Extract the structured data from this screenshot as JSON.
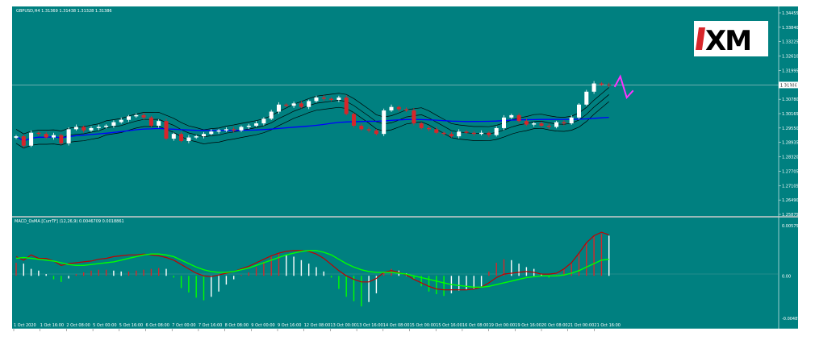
{
  "header": {
    "price_title": "GBPUSD,H4  1.31369 1.31438 1.31328 1.31386",
    "macd_title": "MACD_OsMA [CurrTF] (12,26,9) 0.0046709 0.0018861"
  },
  "logo": {
    "text": "XM",
    "accent_color": "#d7262a"
  },
  "colors": {
    "background": "#008080",
    "bull_candle": "#ffffff",
    "bear_candle": "#d7262a",
    "ma_line": "#0000ff",
    "bands": "#000000",
    "signal_line": "#00ff00",
    "macd_line": "#c00000",
    "arrow": "#ff33ff"
  },
  "current_price_label": "1.31386",
  "price_axis_labels": [
    "1.34455",
    "1.33840",
    "1.33225",
    "1.32610",
    "1.31995",
    "1.31380",
    "1.30780",
    "1.30165",
    "1.29550",
    "1.28935",
    "1.28320",
    "1.27705",
    "1.27105",
    "1.26490",
    "1.25875"
  ],
  "macd_axis_labels": [
    "0.00575",
    "0.00",
    "-0.00487"
  ],
  "time_labels": [
    "1 Oct 2020",
    "1 Oct 16:00",
    "2 Oct 08:00",
    "5 Oct 00:00",
    "5 Oct 16:00",
    "6 Oct 08:00",
    "7 Oct 00:00",
    "7 Oct 16:00",
    "8 Oct 08:00",
    "9 Oct 00:00",
    "9 Oct 16:00",
    "12 Oct 08:00",
    "13 Oct 00:00",
    "13 Oct 16:00",
    "14 Oct 08:00",
    "15 Oct 00:00",
    "15 Oct 16:00",
    "16 Oct 08:00",
    "19 Oct 00:00",
    "19 Oct 16:00",
    "20 Oct 08:00",
    "21 Oct 00:00",
    "21 Oct 16:00"
  ],
  "chart_data": {
    "type": "candlestick",
    "symbol": "GBPUSD",
    "timeframe": "H4",
    "ohlc": [
      1.31369,
      1.31438,
      1.31328,
      1.31386
    ],
    "close_series": [
      1.292,
      1.288,
      1.2935,
      1.293,
      1.2915,
      1.2925,
      1.289,
      1.295,
      1.296,
      1.2945,
      1.2955,
      1.296,
      1.2965,
      1.298,
      1.299,
      1.3005,
      1.301,
      1.3,
      1.2965,
      1.2985,
      1.291,
      1.293,
      1.29,
      1.2915,
      1.292,
      1.293,
      1.294,
      1.2945,
      1.295,
      1.2945,
      1.296,
      1.2965,
      1.2975,
      1.2995,
      1.3025,
      1.3055,
      1.305,
      1.306,
      1.3045,
      1.307,
      1.3085,
      1.308,
      1.3075,
      1.3085,
      1.3015,
      1.2965,
      1.295,
      1.2945,
      1.293,
      1.303,
      1.3045,
      1.3035,
      1.303,
      1.2975,
      1.2955,
      1.295,
      1.2935,
      1.293,
      1.292,
      1.294,
      1.2935,
      1.293,
      1.2935,
      1.2925,
      1.2955,
      1.3,
      1.301,
      1.2985,
      1.297,
      1.2975,
      1.2965,
      1.296,
      1.298,
      1.2975,
      1.3,
      1.3055,
      1.311,
      1.3145,
      1.314,
      1.3138
    ],
    "forecast_arrow": [
      1.313,
      1.3175,
      1.3085,
      1.3115
    ],
    "macd_histogram": [
      0.0015,
      0.0014,
      0.0008,
      0.0006,
      0.0002,
      -0.0004,
      -0.0007,
      -0.0003,
      0.0002,
      0.0004,
      0.0006,
      0.0007,
      0.0007,
      0.0006,
      0.0005,
      0.0005,
      0.0006,
      0.0007,
      0.0008,
      0.0009,
      0.0008,
      -0.0002,
      -0.0014,
      -0.0019,
      -0.0025,
      -0.0028,
      -0.0024,
      -0.0018,
      -0.001,
      -0.0004,
      0.0001,
      0.0004,
      0.001,
      0.0016,
      0.0022,
      0.0026,
      0.0024,
      0.0022,
      0.0018,
      0.0014,
      0.001,
      0.0005,
      -0.0002,
      -0.0015,
      -0.0024,
      -0.0029,
      -0.0035,
      -0.003,
      -0.002,
      0.0004,
      0.0008,
      0.0006,
      0.0003,
      -0.0004,
      -0.0012,
      -0.0018,
      -0.0021,
      -0.0023,
      -0.002,
      -0.0017,
      -0.0016,
      -0.0015,
      -0.0012,
      0.0005,
      0.0015,
      0.0019,
      0.0018,
      0.0014,
      0.001,
      0.0008,
      0.0002,
      -0.0002,
      0.0001,
      0.0008,
      0.0014,
      0.0025,
      0.0038,
      0.0045,
      0.0048,
      0.0046
    ],
    "macd_signal": [
      0.002,
      0.0021,
      0.002,
      0.0019,
      0.0018,
      0.0017,
      0.0015,
      0.0013,
      0.0012,
      0.0012,
      0.0013,
      0.0014,
      0.0015,
      0.0016,
      0.0018,
      0.002,
      0.0022,
      0.0024,
      0.0025,
      0.0025,
      0.0024,
      0.0022,
      0.0018,
      0.0014,
      0.001,
      0.0007,
      0.0005,
      0.0004,
      0.0004,
      0.0005,
      0.0007,
      0.0009,
      0.0012,
      0.0015,
      0.0018,
      0.0021,
      0.0024,
      0.0026,
      0.0028,
      0.0029,
      0.0029,
      0.0027,
      0.0024,
      0.0019,
      0.0014,
      0.001,
      0.0007,
      0.0005,
      0.0004,
      0.0004,
      0.0004,
      0.0003,
      0.0002,
      0.0,
      -0.0002,
      -0.0004,
      -0.0006,
      -0.0008,
      -0.001,
      -0.0011,
      -0.0012,
      -0.0013,
      -0.0013,
      -0.0012,
      -0.001,
      -0.0008,
      -0.0006,
      -0.0004,
      -0.0002,
      -0.0001,
      0.0,
      0.0,
      0.0,
      0.0001,
      0.0003,
      0.0006,
      0.001,
      0.0014,
      0.0018,
      0.0019
    ],
    "macd_line": [
      0.0022,
      0.0018,
      0.0024,
      0.002,
      0.002,
      0.0017,
      0.0012,
      0.0014,
      0.0015,
      0.0016,
      0.0017,
      0.0019,
      0.002,
      0.0022,
      0.0023,
      0.0024,
      0.0024,
      0.0025,
      0.0024,
      0.0023,
      0.0021,
      0.0018,
      0.0013,
      0.0008,
      0.0003,
      0.0,
      -0.0001,
      0.0001,
      0.0003,
      0.0005,
      0.0008,
      0.0011,
      0.0015,
      0.0019,
      0.0023,
      0.0026,
      0.0028,
      0.0029,
      0.0029,
      0.0028,
      0.0025,
      0.002,
      0.0013,
      0.0006,
      0.0,
      -0.0004,
      -0.0007,
      -0.0007,
      -0.0003,
      0.0004,
      0.0006,
      0.0004,
      0.0001,
      -0.0004,
      -0.0008,
      -0.0012,
      -0.0015,
      -0.0016,
      -0.0016,
      -0.0016,
      -0.0016,
      -0.0015,
      -0.0013,
      -0.0008,
      -0.0002,
      0.0002,
      0.0003,
      0.0004,
      0.0005,
      0.0004,
      0.0002,
      0.0002,
      0.0003,
      0.0008,
      0.0015,
      0.0026,
      0.0038,
      0.0046,
      0.005,
      0.0047
    ],
    "price_range": [
      1.25875,
      1.34455
    ],
    "macd_range": [
      -0.00487,
      0.00575
    ]
  }
}
